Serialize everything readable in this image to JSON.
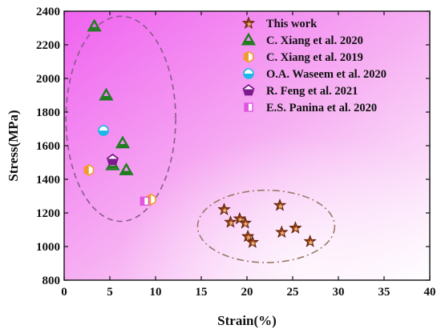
{
  "chart_data": {
    "type": "scatter",
    "xlabel": "Strain(%)",
    "ylabel": "Stress(MPa)",
    "xlim": [
      0,
      40
    ],
    "ylim": [
      800,
      2400
    ],
    "x_ticks": [
      "0",
      "5",
      "10",
      "15",
      "20",
      "25",
      "30",
      "35",
      "40"
    ],
    "y_ticks": [
      "800",
      "1000",
      "1200",
      "1400",
      "1600",
      "1800",
      "2000",
      "2200",
      "2400"
    ],
    "grid": false,
    "legend_position": "top-right",
    "background": "gradient magenta (top-left) to white (bottom-right)",
    "series": [
      {
        "name": "This work",
        "marker": "star",
        "color": "#8b3a14",
        "points": [
          {
            "x": 17.5,
            "y": 1220
          },
          {
            "x": 18.2,
            "y": 1145
          },
          {
            "x": 19.2,
            "y": 1165
          },
          {
            "x": 19.8,
            "y": 1140
          },
          {
            "x": 20.1,
            "y": 1060
          },
          {
            "x": 20.6,
            "y": 1025
          },
          {
            "x": 23.6,
            "y": 1245
          },
          {
            "x": 23.8,
            "y": 1085
          },
          {
            "x": 25.3,
            "y": 1110
          },
          {
            "x": 26.9,
            "y": 1030
          }
        ]
      },
      {
        "name": "C. Xiang et al. 2020",
        "marker": "triangle",
        "color": "#1e7d1e",
        "points": [
          {
            "x": 3.3,
            "y": 2310
          },
          {
            "x": 4.6,
            "y": 1900
          },
          {
            "x": 6.4,
            "y": 1615
          },
          {
            "x": 5.3,
            "y": 1485
          },
          {
            "x": 6.8,
            "y": 1455
          }
        ]
      },
      {
        "name": "C. Xiang et al. 2019",
        "marker": "hexagon",
        "color": "#f29a2e",
        "points": [
          {
            "x": 2.7,
            "y": 1455
          },
          {
            "x": 9.5,
            "y": 1280
          }
        ]
      },
      {
        "name": "O.A. Waseem et al. 2020",
        "marker": "circle",
        "color": "#19b8e6",
        "points": [
          {
            "x": 4.3,
            "y": 1690
          }
        ]
      },
      {
        "name": "R. Feng et al. 2021",
        "marker": "pentagon",
        "color": "#7b1a8c",
        "points": [
          {
            "x": 5.3,
            "y": 1515
          }
        ]
      },
      {
        "name": "E.S. Panina et al. 2020",
        "marker": "square",
        "color": "#e055e0",
        "points": [
          {
            "x": 8.8,
            "y": 1270
          }
        ]
      }
    ],
    "annotations": [
      {
        "shape": "ellipse",
        "style": "dashed",
        "color": "#8a5a8a",
        "center": [
          6.2,
          1760
        ],
        "radii": [
          6.0,
          610
        ]
      },
      {
        "shape": "ellipse",
        "style": "dash-dot",
        "color": "#9a7a6a",
        "center": [
          22.1,
          1120
        ],
        "radii": [
          7.5,
          215
        ]
      }
    ]
  }
}
